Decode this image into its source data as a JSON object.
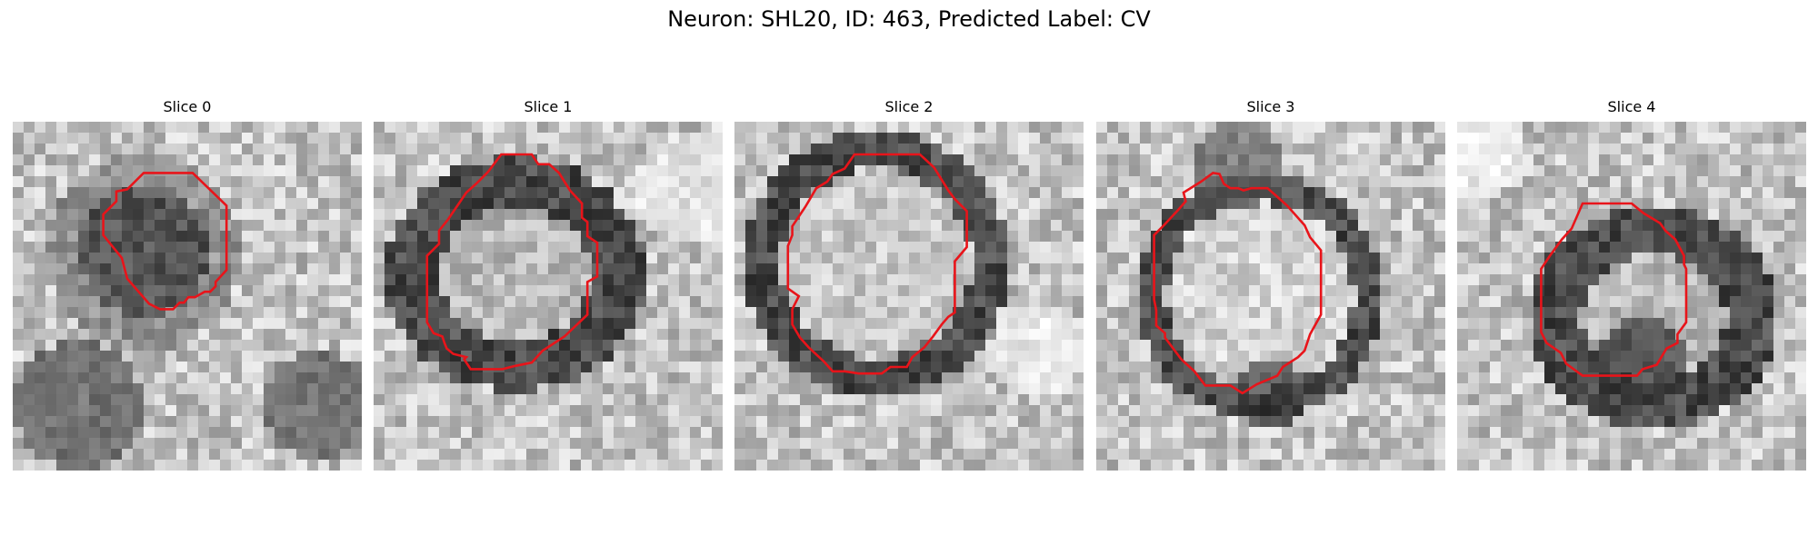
{
  "figure": {
    "title": "Neuron: SHL20, ID: 463, Predicted Label: CV"
  },
  "colors": {
    "contour": "#e8141a",
    "background": "#ffffff"
  },
  "panels": [
    {
      "title": "Slice 0"
    },
    {
      "title": "Slice 1"
    },
    {
      "title": "Slice 2"
    },
    {
      "title": "Slice 3"
    },
    {
      "title": "Slice 4"
    }
  ]
}
